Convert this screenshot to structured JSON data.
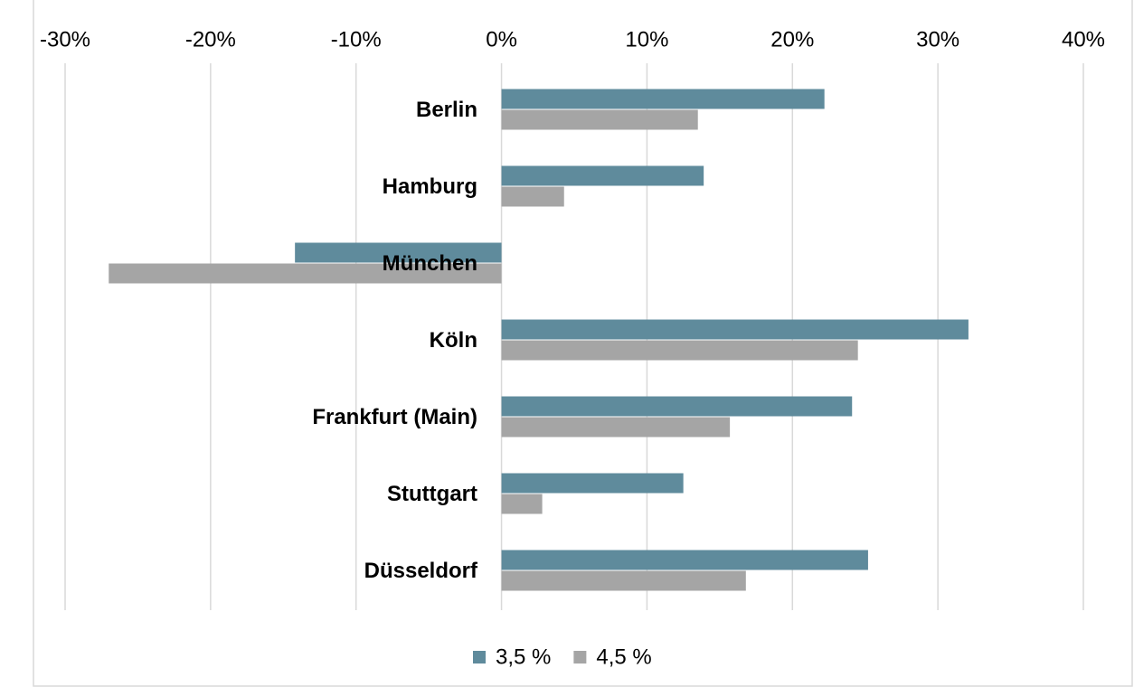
{
  "chart_data": {
    "type": "hbar",
    "categories": [
      "Berlin",
      "Hamburg",
      "München",
      "Köln",
      "Frankfurt (Main)",
      "Stuttgart",
      "Düsseldorf"
    ],
    "series": [
      {
        "name": "3,5 %",
        "color": "#5f8b9c",
        "values": [
          22.2,
          13.9,
          -14.2,
          32.1,
          24.1,
          12.5,
          25.2
        ]
      },
      {
        "name": "4,5 %",
        "color": "#a5a5a5",
        "values": [
          13.5,
          4.3,
          -27.0,
          24.5,
          15.7,
          2.8,
          16.8
        ]
      }
    ],
    "xlim": [
      -30,
      40
    ],
    "xticks": [
      {
        "value": -30,
        "label": "-30%"
      },
      {
        "value": -20,
        "label": "-20%"
      },
      {
        "value": -10,
        "label": "-10%"
      },
      {
        "value": 0,
        "label": "0%"
      },
      {
        "value": 10,
        "label": "10%"
      },
      {
        "value": 20,
        "label": "20%"
      },
      {
        "value": 30,
        "label": "30%"
      },
      {
        "value": 40,
        "label": "40%"
      }
    ],
    "grid": true,
    "legend": "bottom"
  }
}
